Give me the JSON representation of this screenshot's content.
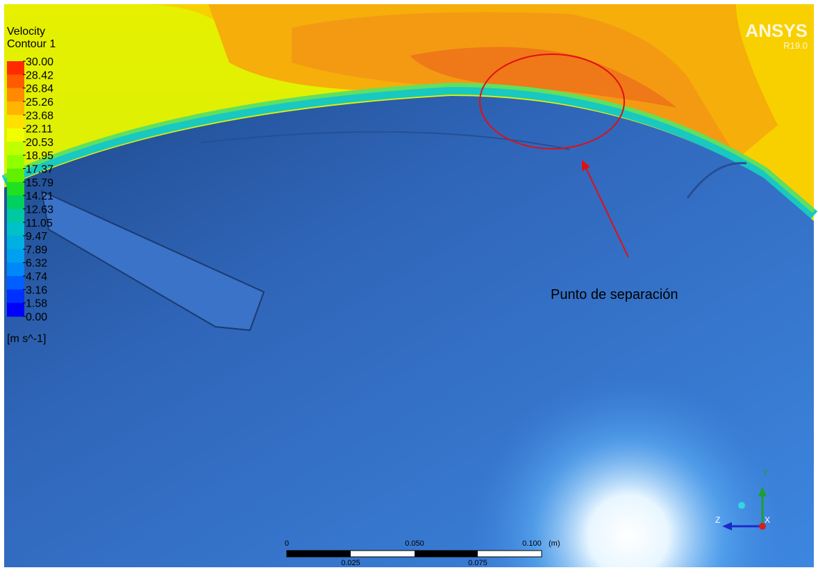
{
  "legend": {
    "title": "Velocity",
    "subtitle": "Contour 1",
    "labels": [
      "30.00",
      "28.42",
      "26.84",
      "25.26",
      "23.68",
      "22.11",
      "20.53",
      "18.95",
      "17.37",
      "15.79",
      "14.21",
      "12.63",
      "11.05",
      "9.47",
      "7.89",
      "6.32",
      "4.74",
      "3.16",
      "1.58",
      "0.00"
    ],
    "unit": "[m s^-1]"
  },
  "brand": {
    "name": "ANSYS",
    "version": "R19.0"
  },
  "annotation": "Punto de separación",
  "scale_bar": {
    "top_labels": [
      "0",
      "0.050",
      "0.100"
    ],
    "unit": "(m)",
    "bottom_labels": [
      "0.025",
      "0.075"
    ]
  },
  "axes": {
    "y": "Y",
    "z": "Z",
    "x": "X"
  }
}
